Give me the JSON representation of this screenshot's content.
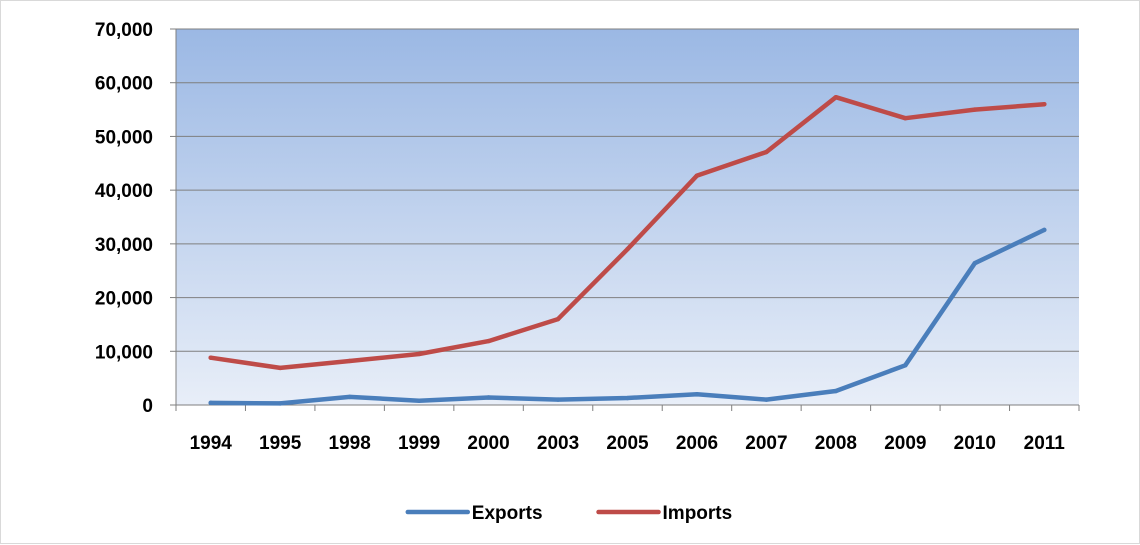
{
  "chart_data": {
    "type": "line",
    "categories": [
      "1994",
      "1995",
      "1998",
      "1999",
      "2000",
      "2003",
      "2005",
      "2006",
      "2007",
      "2008",
      "2009",
      "2010",
      "2011"
    ],
    "series": [
      {
        "name": "Exports",
        "color": "#4a7ebb",
        "values": [
          400,
          300,
          1500,
          800,
          1400,
          1000,
          1300,
          2000,
          1000,
          2600,
          7400,
          26400,
          32600
        ]
      },
      {
        "name": "Imports",
        "color": "#be4b48",
        "values": [
          8800,
          6900,
          8200,
          9500,
          11900,
          16000,
          29000,
          42700,
          47100,
          57300,
          53400,
          55000,
          56000
        ]
      }
    ],
    "ylim": [
      0,
      70000
    ],
    "yticks": [
      0,
      10000,
      20000,
      30000,
      40000,
      50000,
      60000,
      70000
    ],
    "ytick_labels": [
      "0",
      "10,000",
      "20,000",
      "30,000",
      "40,000",
      "50,000",
      "60,000",
      "70,000"
    ],
    "grid": true,
    "legend_position": "bottom",
    "plot_background": "gradient light blue"
  }
}
